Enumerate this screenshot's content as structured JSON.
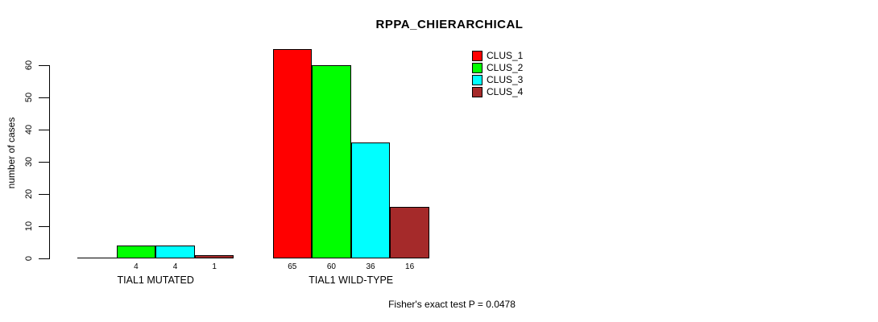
{
  "chart_data": {
    "type": "bar",
    "title": "RPPA_CHIERARCHICAL",
    "ylabel": "number of cases",
    "xlabel": "",
    "categories": [
      "TIAL1 MUTATED",
      "TIAL1 WILD-TYPE"
    ],
    "series": [
      {
        "name": "CLUS_1",
        "color": "#FF0000",
        "values": [
          0,
          65
        ]
      },
      {
        "name": "CLUS_2",
        "color": "#00FF00",
        "values": [
          4,
          60
        ]
      },
      {
        "name": "CLUS_3",
        "color": "#00FFFF",
        "values": [
          4,
          36
        ]
      },
      {
        "name": "CLUS_4",
        "color": "#A52A2A",
        "values": [
          1,
          16
        ]
      }
    ],
    "y_ticks": [
      0,
      10,
      20,
      30,
      40,
      50,
      60
    ],
    "ylim": [
      0,
      65
    ],
    "grid": false,
    "legend_position": "top-right",
    "legend_entries": [
      "CLUS_1",
      "CLUS_2",
      "CLUS_3",
      "CLUS_4"
    ],
    "caption": "Fisher's exact test P = 0.0478"
  }
}
